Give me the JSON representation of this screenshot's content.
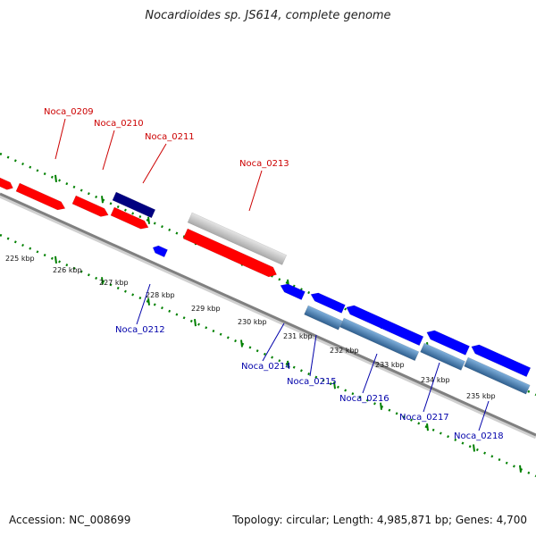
{
  "title": "Nocardioides sp. JS614, complete genome",
  "footer": {
    "accession": "Accession: NC_008699",
    "topology": "Topology: circular; Length: 4,985,871 bp; Genes: 4,700"
  },
  "colors": {
    "forward_gene": "#ff0000",
    "reverse_gene": "#0000ff",
    "dark_forward": "#000080",
    "pseudo_gene": "#c8c8c8",
    "reverse_alt": "#4682b4",
    "label_forward": "#cc0000",
    "label_reverse": "#0000aa",
    "tick_green": "#008000",
    "backbone": "#808080"
  },
  "ticks": [
    "225 kbp",
    "226 kbp",
    "227 kbp",
    "228 kbp",
    "229 kbp",
    "230 kbp",
    "231 kbp",
    "232 kbp",
    "233 kbp",
    "234 kbp",
    "235 kbp"
  ],
  "forward_labels": [
    "Noca_0209",
    "Noca_0210",
    "Noca_0211",
    "Noca_0213"
  ],
  "reverse_labels": [
    "Noca_0212",
    "Noca_0214",
    "Noca_0215",
    "Noca_0216",
    "Noca_0217",
    "Noca_0218"
  ]
}
